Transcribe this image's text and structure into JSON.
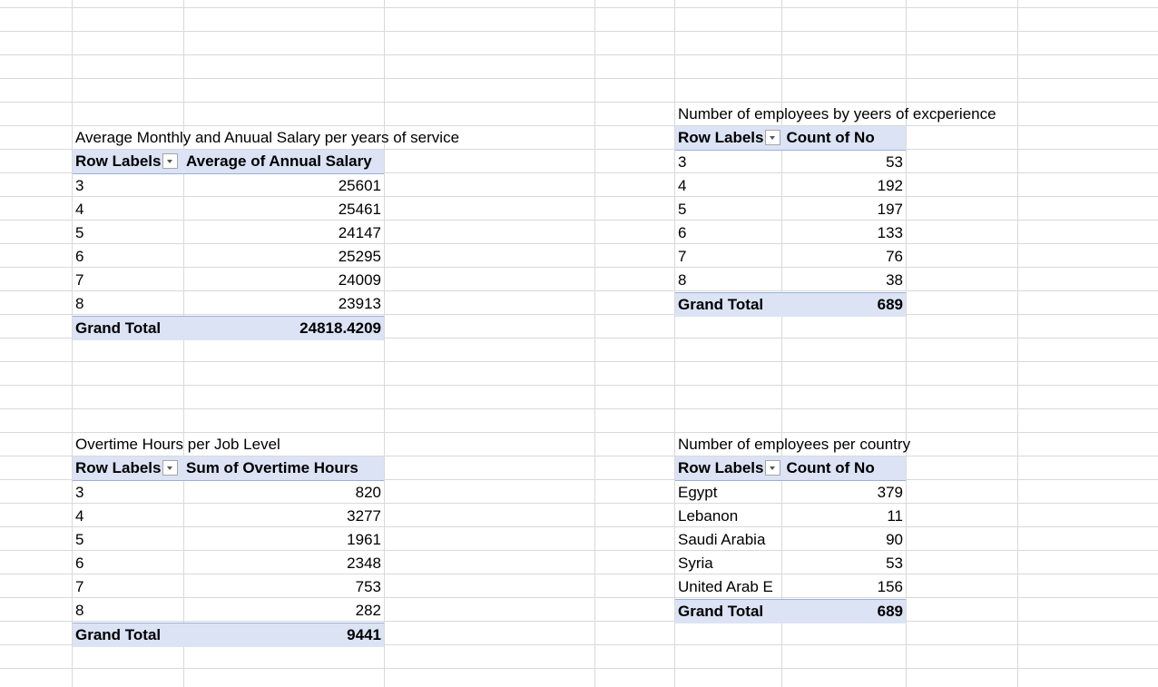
{
  "sheet": {
    "pivot_salary": {
      "title": "Average Monthly and Anuual Salary per years of service",
      "row_header": "Row Labels",
      "value_header": "Average of Annual Salary",
      "rows": [
        {
          "label": "3",
          "value": "25601"
        },
        {
          "label": "4",
          "value": "25461"
        },
        {
          "label": "5",
          "value": "24147"
        },
        {
          "label": "6",
          "value": "25295"
        },
        {
          "label": "7",
          "value": "24009"
        },
        {
          "label": "8",
          "value": "23913"
        }
      ],
      "total_label": "Grand Total",
      "total_value": "24818.4209"
    },
    "pivot_experience": {
      "title": "Number of employees by yeers of excperience",
      "row_header": "Row Labels",
      "value_header": "Count of No",
      "rows": [
        {
          "label": "3",
          "value": "53"
        },
        {
          "label": "4",
          "value": "192"
        },
        {
          "label": "5",
          "value": "197"
        },
        {
          "label": "6",
          "value": "133"
        },
        {
          "label": "7",
          "value": "76"
        },
        {
          "label": "8",
          "value": "38"
        }
      ],
      "total_label": "Grand Total",
      "total_value": "689"
    },
    "pivot_overtime": {
      "title": "Overtime Hours per Job Level",
      "row_header": "Row Labels",
      "value_header": "Sum of Overtime Hours",
      "rows": [
        {
          "label": "3",
          "value": "820"
        },
        {
          "label": "4",
          "value": "3277"
        },
        {
          "label": "5",
          "value": "1961"
        },
        {
          "label": "6",
          "value": "2348"
        },
        {
          "label": "7",
          "value": "753"
        },
        {
          "label": "8",
          "value": "282"
        }
      ],
      "total_label": "Grand Total",
      "total_value": "9441"
    },
    "pivot_country": {
      "title": "Number of employees per country",
      "row_header": "Row Labels",
      "value_header": "Count of No",
      "rows": [
        {
          "label": "Egypt",
          "value": "379"
        },
        {
          "label": "Lebanon",
          "value": "11"
        },
        {
          "label": "Saudi Arabia",
          "value": "90"
        },
        {
          "label": "Syria",
          "value": "53"
        },
        {
          "label": "United Arab E",
          "value": "156"
        }
      ],
      "total_label": "Grand Total",
      "total_value": "689"
    }
  }
}
